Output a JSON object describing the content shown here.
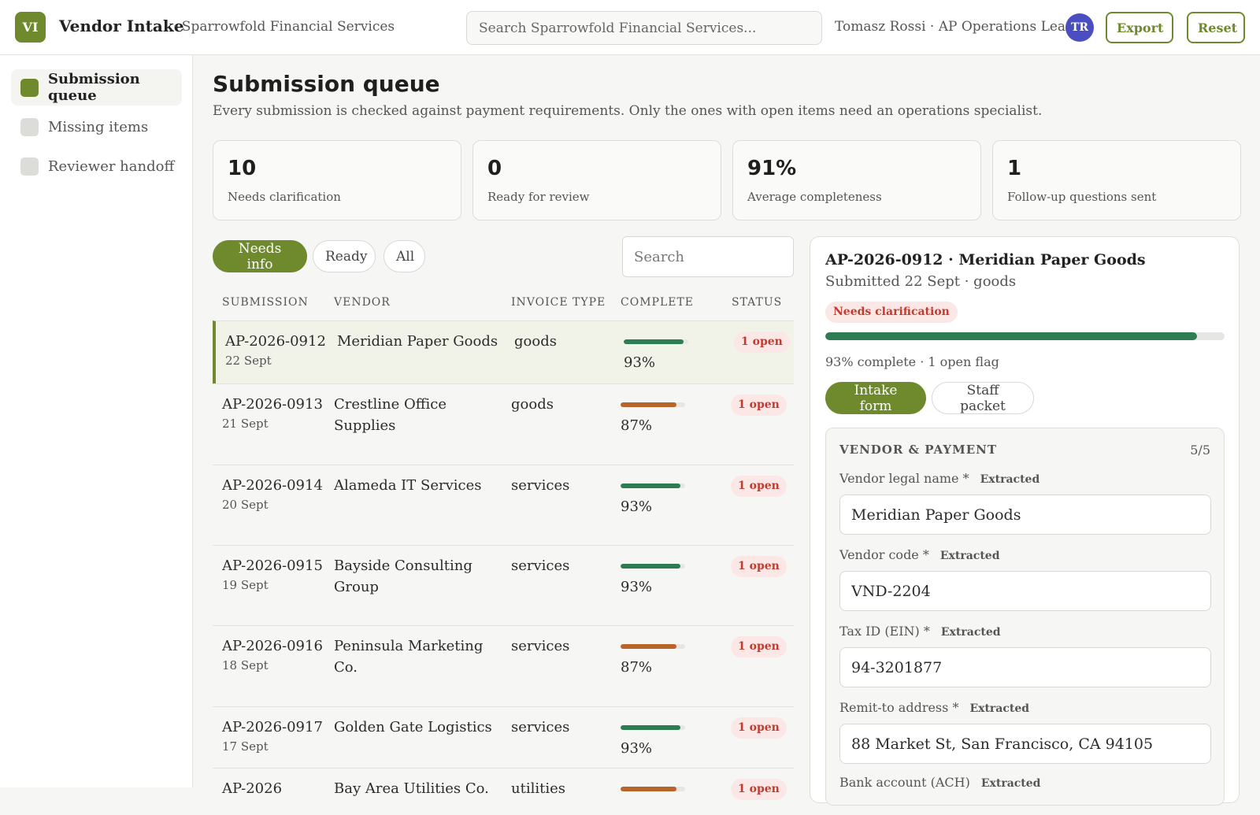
{
  "header": {
    "logo": "VI",
    "app_title": "Vendor Intake",
    "org": "· Sparrowfold Financial Services",
    "search_placeholder": "Search Sparrowfold Financial Services...",
    "user": "Tomasz Rossi · AP Operations Lead",
    "avatar": "TR",
    "export_label": "Export",
    "reset_label": "Reset"
  },
  "sidebar": {
    "items": [
      {
        "label": "Submission queue",
        "active": true
      },
      {
        "label": "Missing items",
        "active": false
      },
      {
        "label": "Reviewer handoff",
        "active": false
      }
    ]
  },
  "page": {
    "title": "Submission queue",
    "subtitle": "Every submission is checked against payment requirements. Only the ones with open items need an operations specialist."
  },
  "stats": [
    {
      "value": "10",
      "label": "Needs clarification"
    },
    {
      "value": "0",
      "label": "Ready for review"
    },
    {
      "value": "91%",
      "label": "Average completeness"
    },
    {
      "value": "1",
      "label": "Follow-up questions sent"
    }
  ],
  "filters": [
    {
      "label": "Needs info",
      "active": true
    },
    {
      "label": "Ready",
      "active": false
    },
    {
      "label": "All",
      "active": false
    }
  ],
  "queue_search_placeholder": "Search",
  "table": {
    "headers": [
      "SUBMISSION",
      "VENDOR",
      "INVOICE TYPE",
      "COMPLETE",
      "STATUS"
    ],
    "rows": [
      {
        "id": "AP-2026-0912",
        "date": "22 Sept",
        "vendor": "Meridian Paper Goods",
        "type": "goods",
        "complete": 93,
        "pct": "93%",
        "status": "1 open",
        "bar_color": "#2e7d52",
        "selected": true
      },
      {
        "id": "AP-2026-0913",
        "date": "21 Sept",
        "vendor": "Crestline Office Supplies",
        "type": "goods",
        "complete": 87,
        "pct": "87%",
        "status": "1 open",
        "bar_color": "#b8652a",
        "selected": false
      },
      {
        "id": "AP-2026-0914",
        "date": "20 Sept",
        "vendor": "Alameda IT Services",
        "type": "services",
        "complete": 93,
        "pct": "93%",
        "status": "1 open",
        "bar_color": "#2e7d52",
        "selected": false
      },
      {
        "id": "AP-2026-0915",
        "date": "19 Sept",
        "vendor": "Bayside Consulting Group",
        "type": "services",
        "complete": 93,
        "pct": "93%",
        "status": "1 open",
        "bar_color": "#2e7d52",
        "selected": false
      },
      {
        "id": "AP-2026-0916",
        "date": "18 Sept",
        "vendor": "Peninsula Marketing Co.",
        "type": "services",
        "complete": 87,
        "pct": "87%",
        "status": "1 open",
        "bar_color": "#b8652a",
        "selected": false
      },
      {
        "id": "AP-2026-0917",
        "date": "17 Sept",
        "vendor": "Golden Gate Logistics",
        "type": "services",
        "complete": 93,
        "pct": "93%",
        "status": "1 open",
        "bar_color": "#2e7d52",
        "selected": false
      },
      {
        "id": "AP-2026",
        "date": "",
        "vendor": "Bay Area Utilities Co.",
        "type": "utilities",
        "complete": 87,
        "pct": "",
        "status": "1 open",
        "bar_color": "#b8652a",
        "selected": false
      }
    ]
  },
  "detail": {
    "title": "AP-2026-0912 · Meridian Paper Goods",
    "subtitle": "Submitted 22 Sept · goods",
    "status": "Needs clarification",
    "progress": 93,
    "progress_note": "93% complete · 1 open flag",
    "tabs": [
      {
        "label": "Intake form",
        "active": true
      },
      {
        "label": "Staff packet",
        "active": false
      }
    ],
    "section": {
      "title": "VENDOR & PAYMENT",
      "count": "5/5",
      "fields": [
        {
          "label": "Vendor legal name *",
          "tag": "Extracted",
          "value": "Meridian Paper Goods"
        },
        {
          "label": "Vendor code *",
          "tag": "Extracted",
          "value": "VND-2204"
        },
        {
          "label": "Tax ID (EIN) *",
          "tag": "Extracted",
          "value": "94-3201877"
        },
        {
          "label": "Remit-to address *",
          "tag": "Extracted",
          "value": "88 Market St, San Francisco, CA 94105"
        },
        {
          "label": "Bank account (ACH)",
          "tag": "Extracted",
          "value": ""
        }
      ]
    }
  }
}
